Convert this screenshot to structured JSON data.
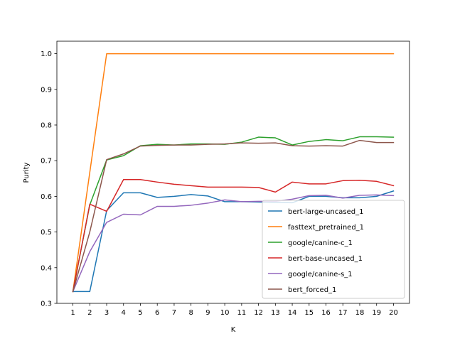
{
  "chart_data": {
    "type": "line",
    "title": "",
    "xlabel": "K",
    "ylabel": "Purity",
    "x": [
      1,
      2,
      3,
      4,
      5,
      6,
      7,
      8,
      9,
      10,
      11,
      12,
      13,
      14,
      15,
      16,
      17,
      18,
      19,
      20
    ],
    "xlim": [
      0.05,
      20.95
    ],
    "ylim": [
      0.3,
      1.035
    ],
    "yticks": [
      0.3,
      0.4,
      0.5,
      0.6,
      0.7,
      0.8,
      0.9,
      1.0
    ],
    "ytick_labels": [
      "0.3",
      "0.4",
      "0.5",
      "0.6",
      "0.7",
      "0.8",
      "0.9",
      "1.0"
    ],
    "xtick_labels": [
      "1",
      "2",
      "3",
      "4",
      "5",
      "6",
      "7",
      "8",
      "9",
      "10",
      "11",
      "12",
      "13",
      "14",
      "15",
      "16",
      "17",
      "18",
      "19",
      "20"
    ],
    "grid": false,
    "legend_position": "lower-right",
    "series": [
      {
        "name": "bert-large-uncased_1",
        "color": "#1f77b4",
        "values": [
          0.333,
          0.333,
          0.56,
          0.61,
          0.61,
          0.597,
          0.6,
          0.605,
          0.601,
          0.585,
          0.585,
          0.584,
          0.583,
          0.582,
          0.6,
          0.6,
          0.596,
          0.596,
          0.6,
          0.615
        ]
      },
      {
        "name": "fasttext_pretrained_1",
        "color": "#ff7f0e",
        "values": [
          0.333,
          0.667,
          1.0,
          1.0,
          1.0,
          1.0,
          1.0,
          1.0,
          1.0,
          1.0,
          1.0,
          1.0,
          1.0,
          1.0,
          1.0,
          1.0,
          1.0,
          1.0,
          1.0,
          1.0
        ]
      },
      {
        "name": "google/canine-c_1",
        "color": "#2ca02c",
        "values": [
          0.333,
          0.576,
          0.702,
          0.714,
          0.742,
          0.746,
          0.744,
          0.747,
          0.747,
          0.746,
          0.752,
          0.766,
          0.764,
          0.744,
          0.754,
          0.759,
          0.756,
          0.767,
          0.767,
          0.766
        ]
      },
      {
        "name": "bert-base-uncased_1",
        "color": "#d62728",
        "values": [
          0.333,
          0.578,
          0.558,
          0.647,
          0.647,
          0.64,
          0.634,
          0.63,
          0.626,
          0.626,
          0.626,
          0.625,
          0.612,
          0.64,
          0.635,
          0.635,
          0.644,
          0.645,
          0.642,
          0.63
        ]
      },
      {
        "name": "google/canine-s_1",
        "color": "#9467bd",
        "values": [
          0.333,
          0.445,
          0.527,
          0.55,
          0.548,
          0.572,
          0.572,
          0.575,
          0.581,
          0.59,
          0.585,
          0.586,
          0.586,
          0.592,
          0.602,
          0.603,
          0.595,
          0.603,
          0.604,
          0.602
        ]
      },
      {
        "name": "bert_forced_1",
        "color": "#8c564b",
        "values": [
          0.333,
          0.5,
          0.703,
          0.719,
          0.741,
          0.743,
          0.744,
          0.744,
          0.746,
          0.747,
          0.75,
          0.749,
          0.75,
          0.742,
          0.741,
          0.742,
          0.741,
          0.757,
          0.751,
          0.751
        ]
      }
    ]
  }
}
